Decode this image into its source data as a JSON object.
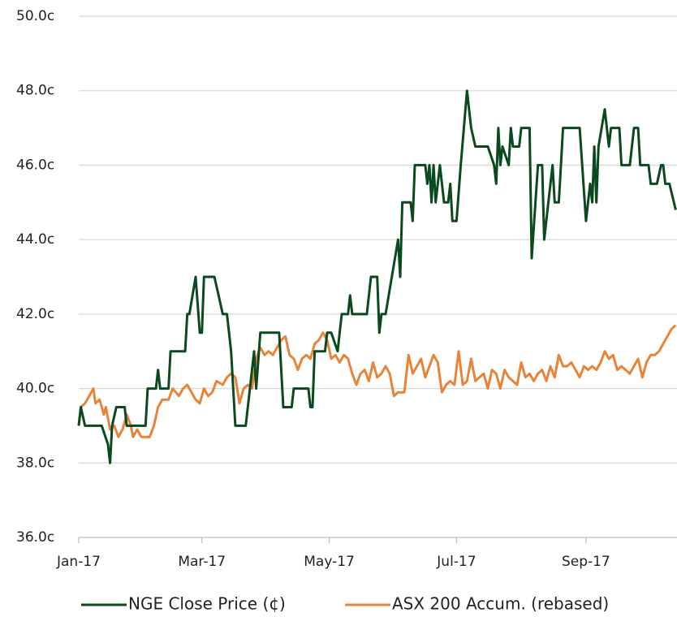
{
  "chart_data": {
    "type": "line",
    "xlim": [
      0,
      287
    ],
    "xticks": [
      {
        "value": 0,
        "label": "Jan-17"
      },
      {
        "value": 59,
        "label": "Mar-17"
      },
      {
        "value": 120,
        "label": "May-17"
      },
      {
        "value": 181,
        "label": "Jul-17"
      },
      {
        "value": 243,
        "label": "Sep-17"
      }
    ],
    "ylim": [
      36,
      50
    ],
    "yticks": [
      {
        "value": 36,
        "label": "36.0c"
      },
      {
        "value": 38,
        "label": "38.0c"
      },
      {
        "value": 40,
        "label": "40.0c"
      },
      {
        "value": 42,
        "label": "42.0c"
      },
      {
        "value": 44,
        "label": "44.0c"
      },
      {
        "value": 46,
        "label": "46.0c"
      },
      {
        "value": 48,
        "label": "48.0c"
      },
      {
        "value": 50,
        "label": "50.0c"
      }
    ],
    "grid": true,
    "legend": "bottom",
    "series": [
      {
        "name": "NGE Close Price (¢)",
        "color": "#0b4a1e",
        "x": [
          0,
          1,
          3,
          11,
          14,
          15,
          16,
          18,
          22,
          23,
          27,
          28,
          32,
          33,
          37,
          38,
          39,
          43,
          44,
          51,
          52,
          53,
          56,
          58,
          59,
          60,
          65,
          67,
          69,
          71,
          73,
          75,
          80,
          82,
          84,
          85,
          87,
          96,
          98,
          102,
          103,
          110,
          111,
          112,
          113,
          118,
          119,
          121,
          124,
          126,
          129,
          130,
          131,
          138,
          140,
          143,
          144,
          145,
          147,
          150,
          153,
          154,
          155,
          159,
          160,
          161,
          166,
          167,
          168,
          169,
          170,
          171,
          173,
          175,
          177,
          178,
          179,
          181,
          183,
          186,
          188,
          190,
          196,
          199,
          200,
          201,
          202,
          203,
          206,
          207,
          208,
          211,
          212,
          216,
          217,
          220,
          222,
          223,
          226,
          227,
          228,
          230,
          232,
          240,
          243,
          245,
          246,
          247,
          248,
          249,
          252,
          254,
          255,
          259,
          260,
          264,
          266,
          268,
          269,
          273,
          274,
          277,
          279,
          280,
          281,
          283,
          286
        ],
        "values": [
          39.0,
          39.5,
          39.0,
          39.0,
          38.5,
          38.0,
          39.0,
          39.5,
          39.5,
          39.0,
          39.0,
          39.0,
          39.0,
          40.0,
          40.0,
          40.5,
          40.0,
          40.0,
          41.0,
          41.0,
          42.0,
          42.0,
          43.0,
          41.5,
          41.5,
          43.0,
          43.0,
          42.5,
          42.0,
          42.0,
          41.0,
          39.0,
          39.0,
          40.0,
          41.0,
          40.0,
          41.5,
          41.5,
          39.5,
          39.5,
          40.0,
          40.0,
          39.5,
          39.5,
          41.0,
          41.0,
          41.5,
          41.5,
          41.0,
          42.0,
          42.0,
          42.5,
          42.0,
          42.0,
          43.0,
          43.0,
          41.5,
          42.0,
          42.0,
          43.0,
          44.0,
          43.0,
          45.0,
          45.0,
          44.5,
          46.0,
          46.0,
          45.5,
          46.0,
          45.0,
          46.0,
          45.0,
          46.0,
          45.0,
          45.0,
          45.5,
          44.5,
          44.5,
          46.0,
          48.0,
          47.0,
          46.5,
          46.5,
          46.0,
          45.5,
          47.0,
          46.0,
          46.5,
          46.0,
          47.0,
          46.5,
          46.5,
          47.0,
          47.0,
          43.5,
          46.0,
          46.0,
          44.0,
          45.5,
          46.0,
          45.0,
          45.0,
          47.0,
          47.0,
          44.5,
          45.5,
          45.0,
          46.5,
          45.0,
          46.5,
          47.5,
          46.5,
          47.0,
          47.0,
          46.0,
          46.0,
          47.0,
          47.0,
          46.0,
          46.0,
          45.5,
          45.5,
          46.0,
          46.0,
          45.5,
          45.5,
          44.8
        ]
      },
      {
        "name": "ASX 200 Accum. (rebased)",
        "color": "#e8843a",
        "x": [
          0,
          1,
          3,
          5,
          7,
          8,
          10,
          12,
          13,
          15,
          17,
          19,
          21,
          23,
          25,
          26,
          28,
          30,
          34,
          36,
          38,
          40,
          43,
          45,
          48,
          50,
          52,
          54,
          56,
          58,
          60,
          62,
          64,
          66,
          69,
          71,
          73,
          75,
          77,
          79,
          81,
          83,
          85,
          87,
          89,
          91,
          93,
          95,
          97,
          99,
          101,
          103,
          105,
          107,
          109,
          111,
          113,
          115,
          117,
          119,
          121,
          123,
          125,
          127,
          129,
          131,
          133,
          135,
          137,
          139,
          141,
          143,
          145,
          147,
          149,
          151,
          153,
          156,
          158,
          160,
          162,
          164,
          166,
          168,
          170,
          172,
          174,
          176,
          178,
          180,
          182,
          184,
          186,
          188,
          190,
          192,
          194,
          196,
          198,
          200,
          202,
          204,
          206,
          208,
          210,
          212,
          214,
          216,
          218,
          220,
          222,
          224,
          226,
          228,
          230,
          232,
          234,
          236,
          238,
          240,
          242,
          244,
          246,
          248,
          250,
          252,
          254,
          256,
          258,
          260,
          262,
          264,
          266,
          268,
          270,
          272,
          274,
          276,
          278,
          280,
          282,
          284,
          286
        ],
        "values": [
          39.0,
          39.5,
          39.6,
          39.8,
          40.0,
          39.6,
          39.7,
          39.3,
          39.5,
          38.9,
          39.0,
          38.7,
          38.9,
          39.3,
          39.0,
          38.7,
          38.9,
          38.7,
          38.7,
          39.0,
          39.5,
          39.7,
          39.7,
          40.0,
          39.8,
          40.0,
          40.1,
          39.9,
          39.7,
          39.6,
          40.0,
          39.8,
          39.9,
          40.2,
          40.1,
          40.3,
          40.4,
          40.3,
          39.6,
          40.0,
          40.1,
          40.0,
          40.8,
          41.1,
          40.9,
          41.0,
          40.9,
          41.1,
          41.3,
          41.4,
          40.9,
          40.8,
          40.5,
          40.8,
          40.9,
          40.8,
          41.2,
          41.3,
          41.5,
          41.3,
          40.8,
          40.9,
          40.7,
          40.9,
          40.8,
          40.4,
          40.1,
          40.4,
          40.5,
          40.2,
          40.7,
          40.3,
          40.4,
          40.6,
          40.4,
          39.8,
          39.9,
          39.9,
          40.9,
          40.4,
          40.6,
          40.8,
          40.3,
          40.6,
          40.9,
          40.7,
          39.9,
          40.1,
          40.2,
          40.1,
          41.0,
          40.1,
          40.2,
          40.8,
          40.2,
          40.3,
          40.4,
          40.0,
          40.5,
          40.4,
          40.0,
          40.5,
          40.3,
          40.2,
          40.1,
          40.7,
          40.3,
          40.4,
          40.2,
          40.4,
          40.5,
          40.2,
          40.6,
          40.3,
          40.9,
          40.6,
          40.6,
          40.7,
          40.5,
          40.3,
          40.6,
          40.5,
          40.6,
          40.5,
          40.7,
          41.0,
          40.8,
          40.9,
          40.5,
          40.6,
          40.5,
          40.4,
          40.6,
          40.8,
          40.3,
          40.7,
          40.9,
          40.9,
          41.0,
          41.2,
          41.4,
          41.6,
          41.7
        ]
      }
    ]
  }
}
